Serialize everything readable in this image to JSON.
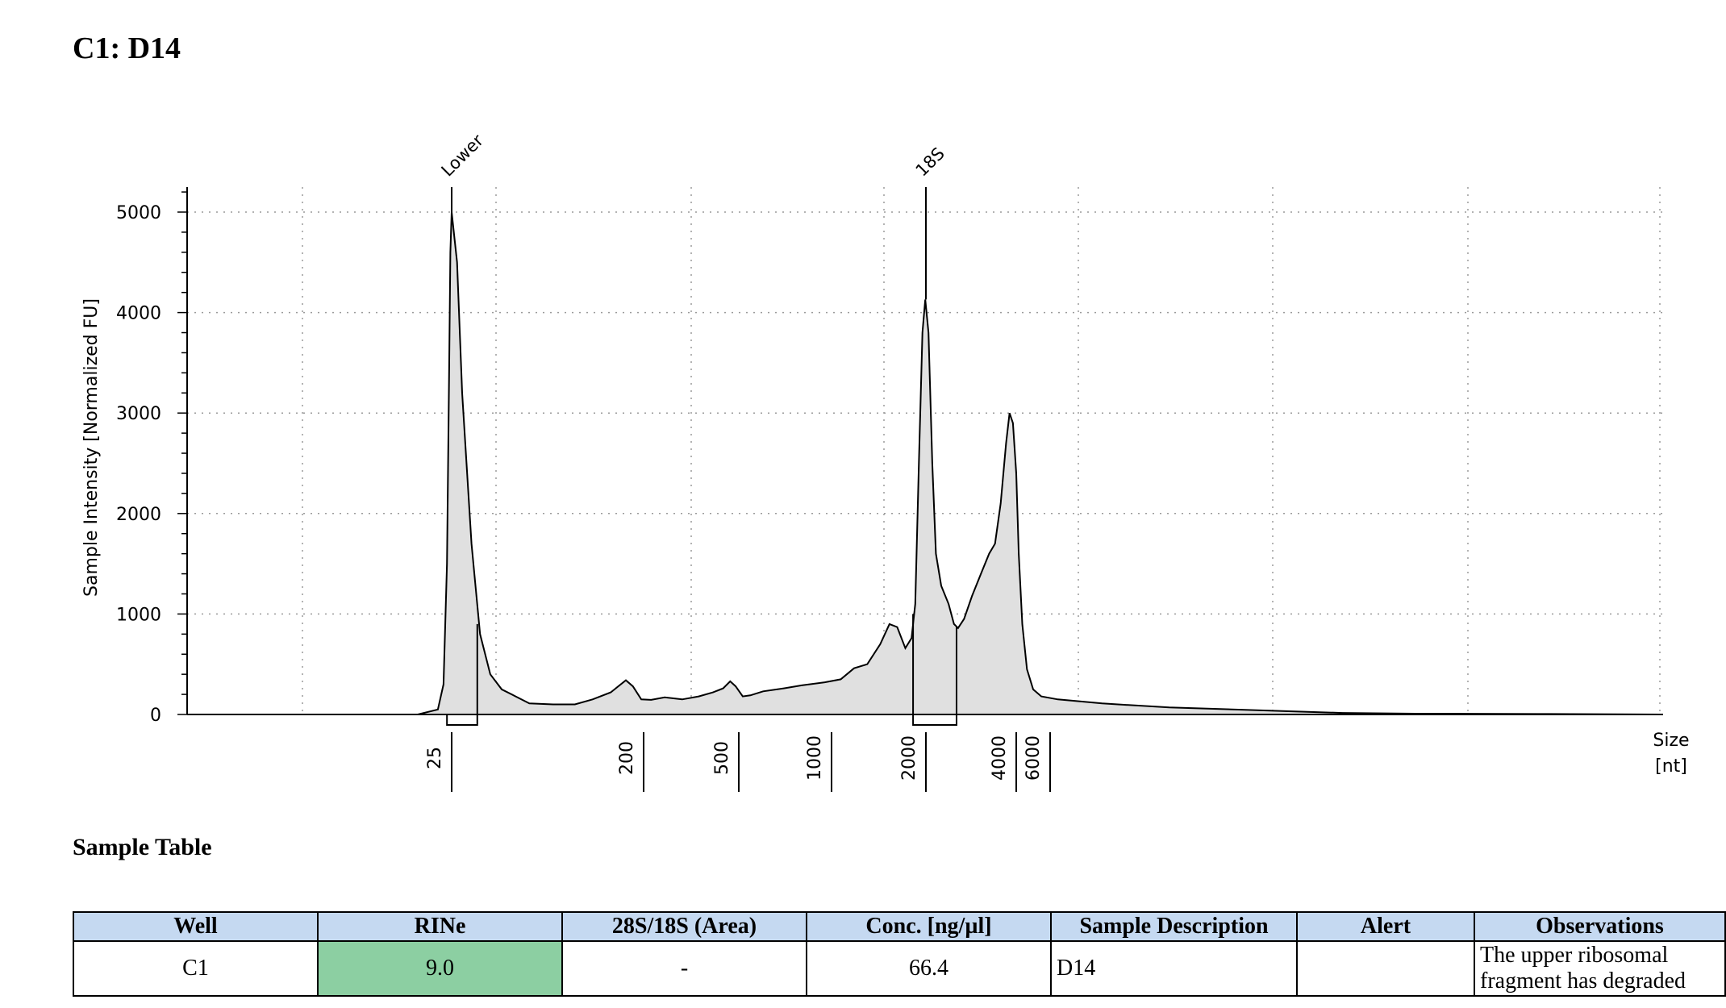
{
  "page": {
    "title": "C1: D14"
  },
  "chart_data": {
    "type": "area",
    "ylabel": "Sample Intensity [Normalized FU]",
    "xlabel_line1": "Size",
    "xlabel_line2": "[nt]",
    "ylim": [
      0,
      5200
    ],
    "y_ticks": [
      "0",
      "1000",
      "2000",
      "3000",
      "4000",
      "5000"
    ],
    "y_tick_values": [
      0,
      1000,
      2000,
      3000,
      4000,
      5000
    ],
    "x_ticks": [
      {
        "label": "25",
        "value": 25
      },
      {
        "label": "200",
        "value": 200
      },
      {
        "label": "500",
        "value": 500
      },
      {
        "label": "1000",
        "value": 1000
      },
      {
        "label": "2000",
        "value": 2000
      },
      {
        "label": "4000",
        "value": 4000
      },
      {
        "label": "6000",
        "value": 6000
      }
    ],
    "peak_labels": [
      {
        "label": "Lower",
        "x": 25,
        "y": 5000
      },
      {
        "label": "18S",
        "x": 2000,
        "y": 4130
      }
    ],
    "grid": "dotted",
    "fill_color": "#e0e0e0",
    "line_color": "#000000",
    "series": [
      {
        "points": [
          [
            -600,
            0
          ],
          [
            -300,
            0
          ],
          [
            5,
            0
          ],
          [
            13,
            50
          ],
          [
            17,
            300
          ],
          [
            20,
            1500
          ],
          [
            22,
            3300
          ],
          [
            23.5,
            4600
          ],
          [
            25,
            5000
          ],
          [
            26.5,
            4500
          ],
          [
            28,
            3200
          ],
          [
            31,
            1700
          ],
          [
            34,
            800
          ],
          [
            38,
            400
          ],
          [
            43,
            250
          ],
          [
            50,
            180
          ],
          [
            58,
            110
          ],
          [
            75,
            100
          ],
          [
            95,
            100
          ],
          [
            115,
            150
          ],
          [
            140,
            220
          ],
          [
            165,
            340
          ],
          [
            178,
            280
          ],
          [
            195,
            150
          ],
          [
            215,
            145
          ],
          [
            245,
            170
          ],
          [
            290,
            150
          ],
          [
            340,
            180
          ],
          [
            390,
            220
          ],
          [
            430,
            260
          ],
          [
            460,
            330
          ],
          [
            485,
            280
          ],
          [
            515,
            180
          ],
          [
            545,
            190
          ],
          [
            600,
            230
          ],
          [
            700,
            260
          ],
          [
            800,
            290
          ],
          [
            950,
            320
          ],
          [
            1070,
            350
          ],
          [
            1180,
            460
          ],
          [
            1300,
            500
          ],
          [
            1430,
            700
          ],
          [
            1530,
            900
          ],
          [
            1620,
            870
          ],
          [
            1720,
            660
          ],
          [
            1800,
            760
          ],
          [
            1850,
            1100
          ],
          [
            1900,
            2500
          ],
          [
            1950,
            3800
          ],
          [
            1990,
            4130
          ],
          [
            2040,
            3800
          ],
          [
            2100,
            2500
          ],
          [
            2160,
            1600
          ],
          [
            2250,
            1280
          ],
          [
            2380,
            1100
          ],
          [
            2480,
            900
          ],
          [
            2560,
            860
          ],
          [
            2680,
            950
          ],
          [
            2850,
            1180
          ],
          [
            3050,
            1400
          ],
          [
            3250,
            1600
          ],
          [
            3400,
            1700
          ],
          [
            3550,
            2100
          ],
          [
            3700,
            2700
          ],
          [
            3800,
            3000
          ],
          [
            3900,
            2900
          ],
          [
            4000,
            2400
          ],
          [
            4120,
            1600
          ],
          [
            4300,
            900
          ],
          [
            4550,
            450
          ],
          [
            4900,
            250
          ],
          [
            5400,
            180
          ],
          [
            6200,
            150
          ],
          [
            7500,
            110
          ],
          [
            10000,
            70
          ],
          [
            15000,
            40
          ],
          [
            22000,
            15
          ],
          [
            40000,
            8
          ],
          [
            120000,
            5
          ],
          [
            300000,
            0
          ]
        ]
      }
    ]
  },
  "table": {
    "title": "Sample Table",
    "headers": [
      "Well",
      "RINe",
      "28S/18S (Area)",
      "Conc. [ng/µl]",
      "Sample Description",
      "Alert",
      "Observations"
    ],
    "row": {
      "well": "C1",
      "rine": "9.0",
      "ratio": "-",
      "conc": "66.4",
      "description": "D14",
      "alert": "",
      "observations": "The upper ribosomal fragment has degraded"
    },
    "rine_color": "#8ccfa2",
    "header_color": "#c5d9f1"
  }
}
